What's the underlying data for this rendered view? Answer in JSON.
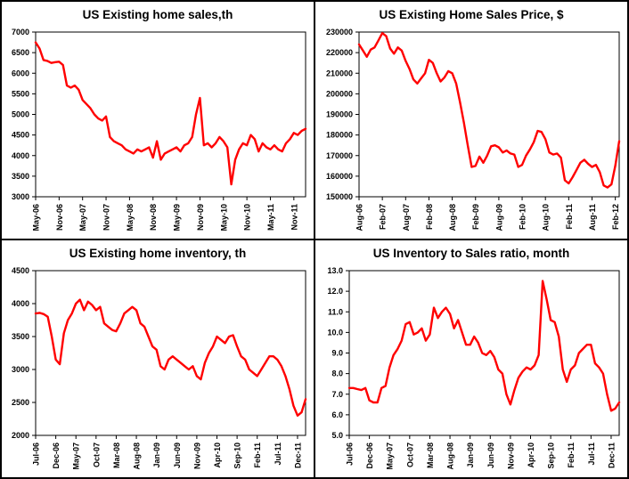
{
  "figure": {
    "background": "#ffffff",
    "border_color": "#000000",
    "layout": "2x2 grid of line charts"
  },
  "chart_data": [
    {
      "type": "line",
      "title": "US Existing home sales,th",
      "line_color": "#FF0000",
      "grid": false,
      "legend": "none",
      "ylim": [
        3000,
        7000
      ],
      "ytick_labels": [
        "3000",
        "3500",
        "4000",
        "4500",
        "5000",
        "5500",
        "6000",
        "6500",
        "7000"
      ],
      "xticks": [
        {
          "i": 0,
          "label": "May-06"
        },
        {
          "i": 6,
          "label": "Nov-06"
        },
        {
          "i": 12,
          "label": "May-07"
        },
        {
          "i": 18,
          "label": "Nov-07"
        },
        {
          "i": 24,
          "label": "May-08"
        },
        {
          "i": 30,
          "label": "Nov-08"
        },
        {
          "i": 36,
          "label": "May-09"
        },
        {
          "i": 42,
          "label": "Nov-09"
        },
        {
          "i": 48,
          "label": "May-10"
        },
        {
          "i": 54,
          "label": "Nov-10"
        },
        {
          "i": 60,
          "label": "May-11"
        },
        {
          "i": 66,
          "label": "Nov-11"
        }
      ],
      "values": [
        6750,
        6600,
        6320,
        6300,
        6250,
        6270,
        6280,
        6200,
        5700,
        5650,
        5700,
        5600,
        5350,
        5250,
        5150,
        5000,
        4900,
        4850,
        4950,
        4450,
        4350,
        4300,
        4250,
        4150,
        4100,
        4050,
        4150,
        4100,
        4150,
        4200,
        3950,
        4350,
        3900,
        4050,
        4100,
        4150,
        4200,
        4100,
        4250,
        4300,
        4450,
        5000,
        5400,
        4250,
        4300,
        4200,
        4300,
        4450,
        4350,
        4200,
        3300,
        3900,
        4150,
        4300,
        4250,
        4500,
        4400,
        4100,
        4300,
        4200,
        4150,
        4250,
        4150,
        4100,
        4300,
        4400,
        4550,
        4500,
        4600,
        4650
      ]
    },
    {
      "type": "line",
      "title": "US Existing Home Sales Price, $",
      "line_color": "#FF0000",
      "grid": false,
      "legend": "none",
      "ylim": [
        150000,
        230000
      ],
      "ytick_labels": [
        "150000",
        "160000",
        "170000",
        "180000",
        "190000",
        "200000",
        "210000",
        "220000",
        "230000"
      ],
      "xticks": [
        {
          "i": 0,
          "label": "Aug-06"
        },
        {
          "i": 6,
          "label": "Feb-07"
        },
        {
          "i": 12,
          "label": "Aug-07"
        },
        {
          "i": 18,
          "label": "Feb-08"
        },
        {
          "i": 24,
          "label": "Aug-08"
        },
        {
          "i": 30,
          "label": "Feb-09"
        },
        {
          "i": 36,
          "label": "Aug-09"
        },
        {
          "i": 42,
          "label": "Feb-10"
        },
        {
          "i": 48,
          "label": "Aug-10"
        },
        {
          "i": 54,
          "label": "Feb-11"
        },
        {
          "i": 60,
          "label": "Aug-11"
        },
        {
          "i": 66,
          "label": "Feb-12"
        }
      ],
      "values": [
        224000,
        221000,
        218000,
        221500,
        222500,
        226000,
        229500,
        228000,
        222000,
        219500,
        222500,
        221000,
        216000,
        212000,
        207000,
        205000,
        207500,
        210000,
        216500,
        215000,
        210000,
        206000,
        208000,
        211000,
        210000,
        205000,
        196000,
        186000,
        175000,
        164500,
        165000,
        169500,
        166500,
        170000,
        174500,
        175000,
        174000,
        171500,
        172500,
        171000,
        170500,
        164500,
        165500,
        170000,
        173000,
        176500,
        182000,
        181500,
        178000,
        171500,
        170500,
        171000,
        169000,
        158000,
        156500,
        159500,
        163000,
        166500,
        168000,
        166000,
        164500,
        165500,
        162000,
        155500,
        154500,
        156000,
        165000,
        177000
      ]
    },
    {
      "type": "line",
      "title": "US Existing home inventory, th",
      "line_color": "#FF0000",
      "grid": false,
      "legend": "none",
      "ylim": [
        2000,
        4500
      ],
      "ytick_labels": [
        "2000",
        "2500",
        "3000",
        "3500",
        "4000",
        "4500"
      ],
      "xticks": [
        {
          "i": 0,
          "label": "Jul-06"
        },
        {
          "i": 5,
          "label": "Dec-06"
        },
        {
          "i": 10,
          "label": "May-07"
        },
        {
          "i": 15,
          "label": "Oct-07"
        },
        {
          "i": 20,
          "label": "Mar-08"
        },
        {
          "i": 25,
          "label": "Aug-08"
        },
        {
          "i": 30,
          "label": "Jan-09"
        },
        {
          "i": 35,
          "label": "Jun-09"
        },
        {
          "i": 40,
          "label": "Nov-09"
        },
        {
          "i": 45,
          "label": "Apr-10"
        },
        {
          "i": 50,
          "label": "Sep-10"
        },
        {
          "i": 55,
          "label": "Feb-11"
        },
        {
          "i": 60,
          "label": "Jul-11"
        },
        {
          "i": 65,
          "label": "Dec-11"
        }
      ],
      "values": [
        3850,
        3860,
        3840,
        3800,
        3500,
        3150,
        3080,
        3550,
        3750,
        3850,
        4000,
        4060,
        3900,
        4030,
        3980,
        3900,
        3950,
        3700,
        3650,
        3600,
        3580,
        3700,
        3850,
        3900,
        3950,
        3900,
        3700,
        3650,
        3500,
        3350,
        3300,
        3050,
        3000,
        3150,
        3200,
        3150,
        3100,
        3050,
        3000,
        3050,
        2900,
        2850,
        3100,
        3250,
        3350,
        3500,
        3450,
        3400,
        3500,
        3520,
        3350,
        3200,
        3150,
        3000,
        2950,
        2900,
        3000,
        3100,
        3200,
        3200,
        3150,
        3050,
        2900,
        2700,
        2450,
        2300,
        2350,
        2550
      ]
    },
    {
      "type": "line",
      "title": "US Inventory to Sales ratio, month",
      "line_color": "#FF0000",
      "grid": false,
      "legend": "none",
      "ylim": [
        5.0,
        13.0
      ],
      "ytick_labels": [
        "5.0",
        "6.0",
        "7.0",
        "8.0",
        "9.0",
        "10.0",
        "11.0",
        "12.0",
        "13.0"
      ],
      "xticks": [
        {
          "i": 0,
          "label": "Jul-06"
        },
        {
          "i": 5,
          "label": "Dec-06"
        },
        {
          "i": 10,
          "label": "May-07"
        },
        {
          "i": 15,
          "label": "Oct-07"
        },
        {
          "i": 20,
          "label": "Mar-08"
        },
        {
          "i": 25,
          "label": "Aug-08"
        },
        {
          "i": 30,
          "label": "Jan-09"
        },
        {
          "i": 35,
          "label": "Jun-09"
        },
        {
          "i": 40,
          "label": "Nov-09"
        },
        {
          "i": 45,
          "label": "Apr-10"
        },
        {
          "i": 50,
          "label": "Sep-10"
        },
        {
          "i": 55,
          "label": "Feb-11"
        },
        {
          "i": 60,
          "label": "Jul-11"
        },
        {
          "i": 65,
          "label": "Dec-11"
        }
      ],
      "values": [
        7.3,
        7.3,
        7.25,
        7.2,
        7.3,
        6.7,
        6.6,
        6.6,
        7.3,
        7.4,
        8.3,
        8.9,
        9.2,
        9.6,
        10.4,
        10.5,
        9.9,
        10.0,
        10.2,
        9.6,
        9.9,
        11.2,
        10.7,
        11.0,
        11.2,
        10.9,
        10.2,
        10.6,
        10.0,
        9.4,
        9.4,
        9.8,
        9.5,
        9.0,
        8.9,
        9.1,
        8.8,
        8.2,
        8.0,
        7.0,
        6.5,
        7.2,
        7.8,
        8.1,
        8.3,
        8.2,
        8.4,
        8.9,
        12.5,
        11.6,
        10.6,
        10.5,
        9.8,
        8.2,
        7.6,
        8.2,
        8.4,
        9.0,
        9.2,
        9.4,
        9.4,
        8.5,
        8.3,
        8.0,
        7.0,
        6.2,
        6.3,
        6.6
      ]
    }
  ]
}
